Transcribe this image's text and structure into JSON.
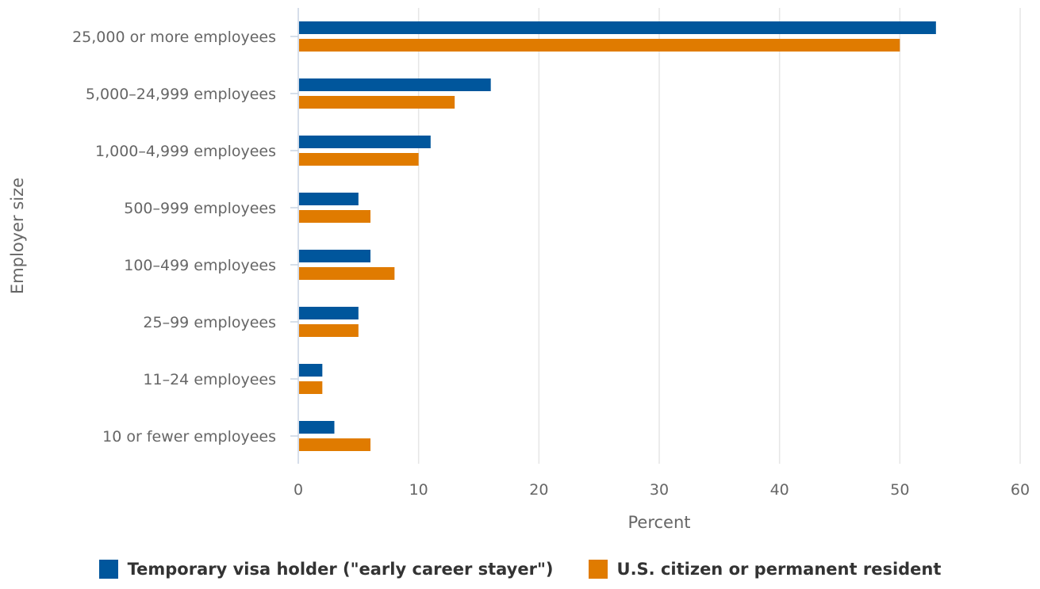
{
  "chart_data": {
    "type": "bar",
    "orientation": "horizontal",
    "categories": [
      "25,000 or more employees",
      "5,000–24,999 employees",
      "1,000–4,999 employees",
      "500–999 employees",
      "100–499 employees",
      "25–99 employees",
      "11–24 employees",
      "10 or fewer employees"
    ],
    "series": [
      {
        "name": "Temporary visa holder (\"early career stayer\")",
        "color": "#00569C",
        "values": [
          53,
          16,
          11,
          5,
          6,
          5,
          2,
          3
        ]
      },
      {
        "name": "U.S. citizen or permanent resident",
        "color": "#E07B00",
        "values": [
          50,
          13,
          10,
          6,
          8,
          5,
          2,
          6
        ]
      }
    ],
    "xlabel": "Percent",
    "ylabel": "Employer size",
    "xlim": [
      0,
      60
    ],
    "xticks": [
      0,
      10,
      20,
      30,
      40,
      50,
      60
    ],
    "grid": true,
    "legend_position": "bottom"
  }
}
